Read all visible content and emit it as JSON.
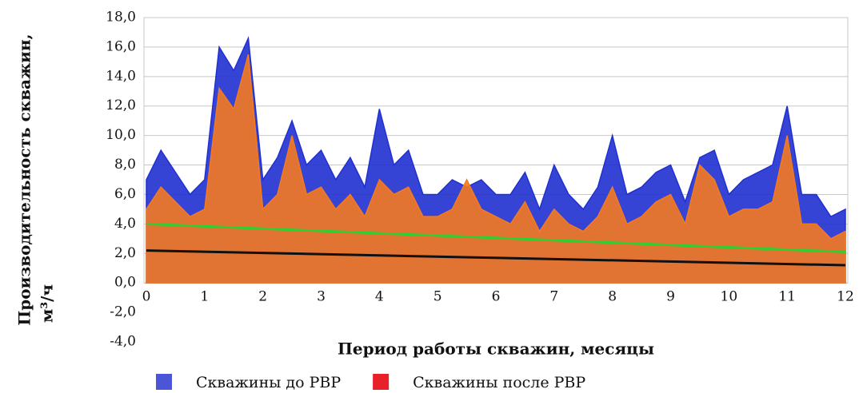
{
  "chart_data": {
    "type": "area",
    "ylabel": "Производительность скважин,",
    "ylabel_unit": "м³/ч",
    "xlabel": "Период работы скважин,  месяцы",
    "x": [
      0,
      0.25,
      0.5,
      0.75,
      1,
      1.25,
      1.5,
      1.75,
      2,
      2.25,
      2.5,
      2.75,
      3,
      3.25,
      3.5,
      3.75,
      4,
      4.25,
      4.5,
      4.75,
      5,
      5.25,
      5.5,
      5.75,
      6,
      6.25,
      6.5,
      6.75,
      7,
      7.25,
      7.5,
      7.75,
      8,
      8.25,
      8.5,
      8.75,
      9,
      9.25,
      9.5,
      9.75,
      10,
      10.25,
      10.5,
      10.75,
      11,
      11.25,
      11.5,
      11.75,
      12
    ],
    "series": [
      {
        "name": "Скважины  до РВР",
        "color": "#2030d0",
        "legend_color": "#4a55d8",
        "values": [
          7.0,
          9.0,
          7.5,
          6.0,
          7.0,
          16.0,
          14.4,
          16.6,
          7.0,
          8.5,
          11.0,
          8.0,
          9.0,
          7.0,
          8.5,
          6.5,
          11.8,
          8.0,
          9.0,
          6.0,
          6.0,
          7.0,
          6.5,
          7.0,
          6.0,
          6.0,
          7.5,
          5.0,
          8.0,
          6.0,
          5.0,
          6.5,
          10.0,
          6.0,
          6.5,
          7.5,
          8.0,
          5.5,
          8.5,
          9.0,
          6.0,
          7.0,
          7.5,
          8.0,
          12.0,
          6.0,
          6.0,
          4.5,
          5.0
        ]
      },
      {
        "name": "Скважины после РВР",
        "color": "#f47a20",
        "legend_color": "#e8202a",
        "values": [
          5.0,
          6.5,
          5.5,
          4.5,
          5.0,
          13.2,
          11.8,
          15.5,
          5.0,
          6.0,
          10.0,
          6.0,
          6.5,
          5.0,
          6.0,
          4.5,
          7.0,
          6.0,
          6.5,
          4.5,
          4.5,
          5.0,
          7.0,
          5.0,
          4.5,
          4.0,
          5.5,
          3.5,
          5.0,
          4.0,
          3.5,
          4.5,
          6.5,
          4.0,
          4.5,
          5.5,
          6.0,
          4.0,
          8.0,
          7.0,
          4.5,
          5.0,
          5.0,
          5.5,
          10.0,
          4.0,
          4.0,
          3.0,
          3.5
        ]
      }
    ],
    "trend_lines": [
      {
        "color": "#30d030",
        "x": [
          0,
          12
        ],
        "values": [
          4.0,
          2.1
        ]
      },
      {
        "color": "#111111",
        "x": [
          0,
          12
        ],
        "values": [
          2.2,
          1.2
        ]
      }
    ],
    "xlim": [
      0,
      12
    ],
    "xticks": [
      0,
      1,
      2,
      3,
      4,
      5,
      6,
      7,
      8,
      9,
      10,
      11,
      12
    ],
    "ylim": [
      -4,
      18
    ],
    "yticks": [
      {
        "value": -4,
        "label": "-4,0"
      },
      {
        "value": -2,
        "label": "-2,0"
      },
      {
        "value": 0,
        "label": "0,0"
      },
      {
        "value": 2,
        "label": "2,0"
      },
      {
        "value": 4,
        "label": "4,0"
      },
      {
        "value": 6,
        "label": "6,0"
      },
      {
        "value": 8,
        "label": "8,0"
      },
      {
        "value": 10,
        "label": "10,0"
      },
      {
        "value": 12,
        "label": "12,0"
      },
      {
        "value": 14,
        "label": "14,0"
      },
      {
        "value": 16,
        "label": "16,0"
      },
      {
        "value": 18,
        "label": "18,0"
      }
    ],
    "grid": true
  }
}
